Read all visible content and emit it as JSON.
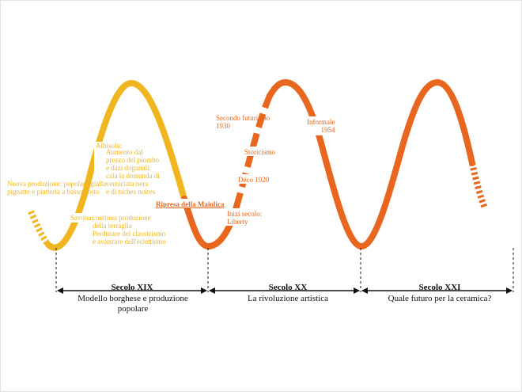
{
  "colors": {
    "yellow": "#f0b620",
    "orange": "#e8661e",
    "text": "#111111"
  },
  "annotations": {
    "nuova_produzione": "Nuova produzione: popolare gialla\npignatte e piatteria a basso costo",
    "albisola_title": "Albisola:",
    "albisola_text": "Aumento dal\nprezzo del piombo\ne dazi doganali:\ncala la domanda di\nverniciata nera\ne di taches noires",
    "savona_title": "Savona:",
    "savona_text": "continua produzione\ndella terraglia\nPerdurare del classicismo\ne avanzare dell'eclettismo",
    "ripresa": "Ripresa della Maiolica",
    "secondo_futurismo": "Secondo futurismo\n1930",
    "informale": "Informale\n1954",
    "storicismo": "Storicismo",
    "deco": "Déco 1920",
    "inizi_secolo": "Inizi secolo:\nLiberty"
  },
  "periods": [
    {
      "title": "Secolo XIX",
      "subtitle": "Modello borghese e produzione\npopolare"
    },
    {
      "title": "Secolo XX",
      "subtitle": "La rivoluzione artistica"
    },
    {
      "title": "Secolo XXI",
      "subtitle": "Quale futuro per la ceramica?"
    }
  ]
}
